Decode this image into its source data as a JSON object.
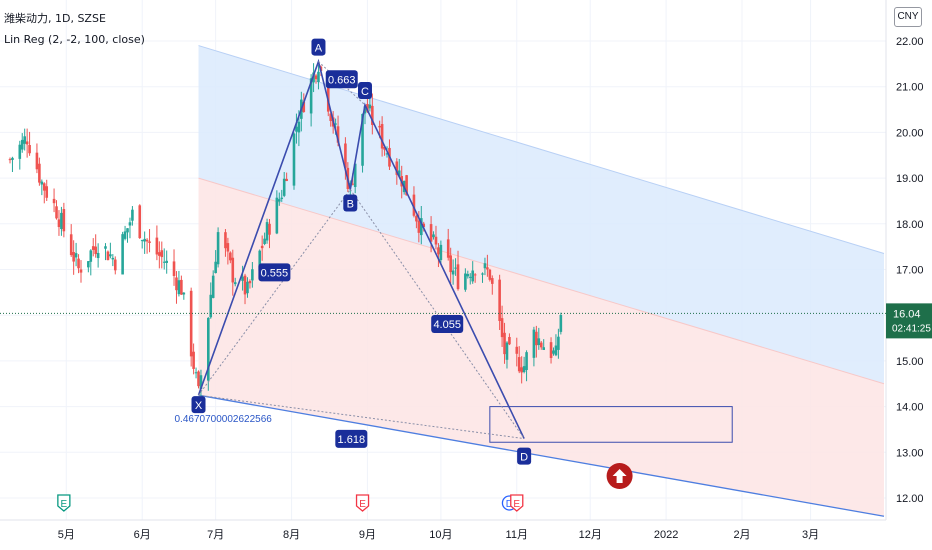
{
  "legend": {
    "symbol_line": "潍柴动力, 1D, SZSE",
    "indicator_line": "Lin Reg (2, -2, 100, close)"
  },
  "currency": "CNY",
  "price_label": {
    "price": "16.04",
    "countdown": "02:41:25",
    "color": "#1e6f4a"
  },
  "pattern": {
    "points": [
      {
        "label": "X",
        "price": 14.25,
        "date": "2021-06-24"
      },
      {
        "label": "A",
        "price": 21.55,
        "date": "2021-08-12"
      },
      {
        "label": "B",
        "price": 18.75,
        "date": "2021-08-25"
      },
      {
        "label": "C",
        "price": 20.6,
        "date": "2021-08-31"
      },
      {
        "label": "D",
        "price": 13.3,
        "date": "2021-11-04"
      }
    ],
    "ratios": [
      {
        "text": "0.555"
      },
      {
        "text": "0.663"
      },
      {
        "text": "4.055"
      },
      {
        "text": "1.618"
      }
    ],
    "x_price_text": "0.4670700002622566",
    "color": "#3b4cae",
    "label_bg": "#1a2e9a"
  },
  "icons": [
    {
      "name": "earnings-icon",
      "glyph": "E",
      "color": "#089981",
      "date": "2021-04-30"
    },
    {
      "name": "earnings-icon",
      "glyph": "E",
      "color": "#f23645",
      "date": "2021-08-30"
    },
    {
      "name": "dividend-icon",
      "glyph": "D",
      "color": "#2962ff",
      "date": "2021-10-29"
    },
    {
      "name": "earnings-icon",
      "glyph": "E",
      "color": "#f23645",
      "date": "2021-11-01"
    }
  ],
  "sell_arrow": {
    "name": "sell-arrow-icon",
    "date": "2021-12-13",
    "color": "#b71c1c"
  },
  "chart_data": {
    "type": "candlestick",
    "y_ticks": [
      "22.00",
      "21.00",
      "20.00",
      "19.00",
      "18.00",
      "17.00",
      "16.00",
      "15.00",
      "14.00",
      "13.00",
      "12.00"
    ],
    "x_ticks": [
      "5月",
      "6月",
      "7月",
      "8月",
      "9月",
      "10月",
      "11月",
      "12月",
      "2022",
      "2月",
      "3月"
    ],
    "ylim": [
      11.55,
      22.55
    ],
    "xlim": [
      "2021-04-08",
      "2022-03-31"
    ],
    "colors": {
      "up": "#26a69a",
      "down": "#ef5350",
      "grid": "#f0f3fa"
    },
    "close_path": [
      {
        "date": "2021-04-08",
        "close": 19.4
      },
      {
        "date": "2021-04-15",
        "close": 19.9
      },
      {
        "date": "2021-04-21",
        "close": 18.9
      },
      {
        "date": "2021-04-27",
        "close": 18.3
      },
      {
        "date": "2021-05-06",
        "close": 17.0
      },
      {
        "date": "2021-05-14",
        "close": 17.6
      },
      {
        "date": "2021-05-21",
        "close": 17.2
      },
      {
        "date": "2021-05-28",
        "close": 18.2
      },
      {
        "date": "2021-06-04",
        "close": 17.5
      },
      {
        "date": "2021-06-10",
        "close": 17.2
      },
      {
        "date": "2021-06-17",
        "close": 16.6
      },
      {
        "date": "2021-06-24",
        "close": 14.25
      },
      {
        "date": "2021-07-02",
        "close": 17.8
      },
      {
        "date": "2021-07-08",
        "close": 16.9
      },
      {
        "date": "2021-07-14",
        "close": 16.5
      },
      {
        "date": "2021-07-21",
        "close": 17.7
      },
      {
        "date": "2021-07-28",
        "close": 18.7
      },
      {
        "date": "2021-08-04",
        "close": 20.4
      },
      {
        "date": "2021-08-12",
        "close": 21.55
      },
      {
        "date": "2021-08-19",
        "close": 20.0
      },
      {
        "date": "2021-08-25",
        "close": 18.75
      },
      {
        "date": "2021-08-31",
        "close": 20.6
      },
      {
        "date": "2021-09-08",
        "close": 19.7
      },
      {
        "date": "2021-09-15",
        "close": 19.0
      },
      {
        "date": "2021-09-23",
        "close": 17.9
      },
      {
        "date": "2021-10-08",
        "close": 16.8
      },
      {
        "date": "2021-10-15",
        "close": 17.1
      },
      {
        "date": "2021-10-21",
        "close": 16.9
      },
      {
        "date": "2021-10-27",
        "close": 15.2
      },
      {
        "date": "2021-11-04",
        "close": 14.9
      },
      {
        "date": "2021-11-08",
        "close": 15.6
      },
      {
        "date": "2021-11-11",
        "close": 15.4
      },
      {
        "date": "2021-11-17",
        "close": 15.1
      },
      {
        "date": "2021-11-19",
        "close": 16.04
      }
    ],
    "lin_reg": {
      "upper_start": {
        "date": "2021-06-24",
        "price": 21.9
      },
      "upper_end": {
        "date": "2022-03-31",
        "price": 17.35
      },
      "mid_start": {
        "date": "2021-06-24",
        "price": 19.0
      },
      "mid_end": {
        "date": "2022-03-31",
        "price": 14.5
      },
      "lower_start": {
        "date": "2021-06-24",
        "price": 14.25
      },
      "lower_end": {
        "date": "2022-03-31",
        "price": 11.6
      },
      "upper_fill": "#dbeafd",
      "lower_fill": "#fde4e4",
      "line_color": "#4e7ee0"
    },
    "target_box": {
      "start": "2021-10-21",
      "end": "2022-01-28",
      "high": 14.0,
      "low": 13.22
    }
  }
}
